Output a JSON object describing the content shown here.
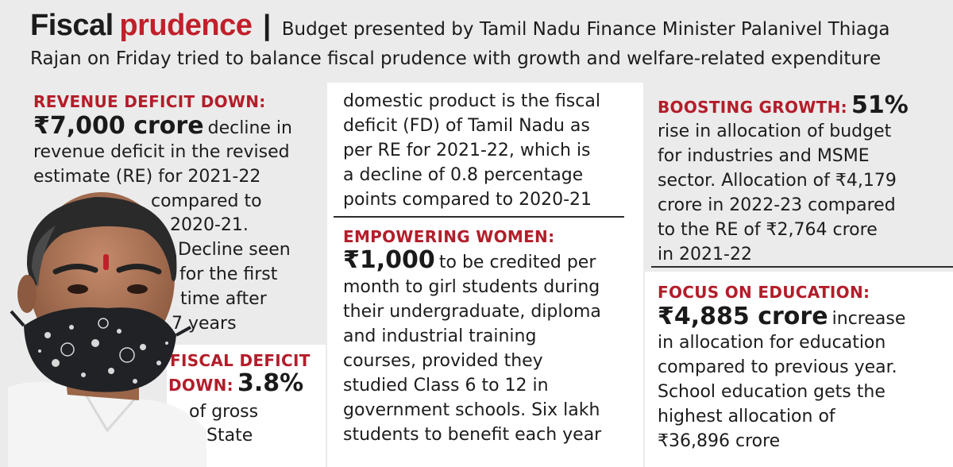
{
  "header": {
    "title_main": "Fiscal",
    "title_accent": "prudence",
    "separator": "|",
    "subtitle": "Budget presented by Tamil Nadu Finance Minister Palanivel Thiaga Rajan on Friday tried to balance fiscal prudence with growth and welfare-related expenditure"
  },
  "revenue": {
    "heading": "REVENUE DEFICIT DOWN:",
    "amount": "₹7,000 crore",
    "l1": "decline in",
    "l2": "revenue deficit in the revised",
    "l3": "estimate (RE) for 2021-22",
    "l4": "compared to",
    "l5": "2020-21.",
    "l6": "Decline seen",
    "l7": "for the first",
    "l8": "time after",
    "l9": "7 years"
  },
  "fiscal": {
    "heading1": "FISCAL DEFICIT",
    "heading2": "DOWN:",
    "amount": "3.8%",
    "l1": "of gross",
    "l2": "State",
    "c1": "domestic product is the fiscal",
    "c2": "deficit (FD) of Tamil Nadu as",
    "c3": "per RE for 2021-22, which is",
    "c4": "a decline of 0.8 percentage",
    "c5": "points compared to 2020-21"
  },
  "women": {
    "heading": "EMPOWERING WOMEN:",
    "amount": "₹1,000",
    "l1": "to be credited per",
    "l2": "month to girl students during",
    "l3": "their undergraduate, diploma",
    "l4": "and industrial training",
    "l5": "courses, provided they",
    "l6": "studied Class 6 to 12 in",
    "l7": "government schools. Six lakh",
    "l8": "students to benefit each year"
  },
  "growth": {
    "heading": "BOOSTING GROWTH:",
    "amount": "51%",
    "l1": "rise in allocation of budget",
    "l2": "for industries and MSME",
    "l3": "sector. Allocation of ₹4,179",
    "l4": "crore in 2022-23 compared",
    "l5": "to the RE of ₹2,764 crore",
    "l6": "in 2021-22"
  },
  "education": {
    "heading": "FOCUS ON EDUCATION:",
    "amount": "₹4,885 crore",
    "l1": "increase",
    "l2": "in allocation for education",
    "l3": "compared to previous year.",
    "l4": "School education gets the",
    "l5": "highest allocation of",
    "l6": "₹36,896 crore"
  },
  "colors": {
    "accent_red": "#c0202a",
    "background": "#ebebeb",
    "panel": "#ffffff"
  }
}
